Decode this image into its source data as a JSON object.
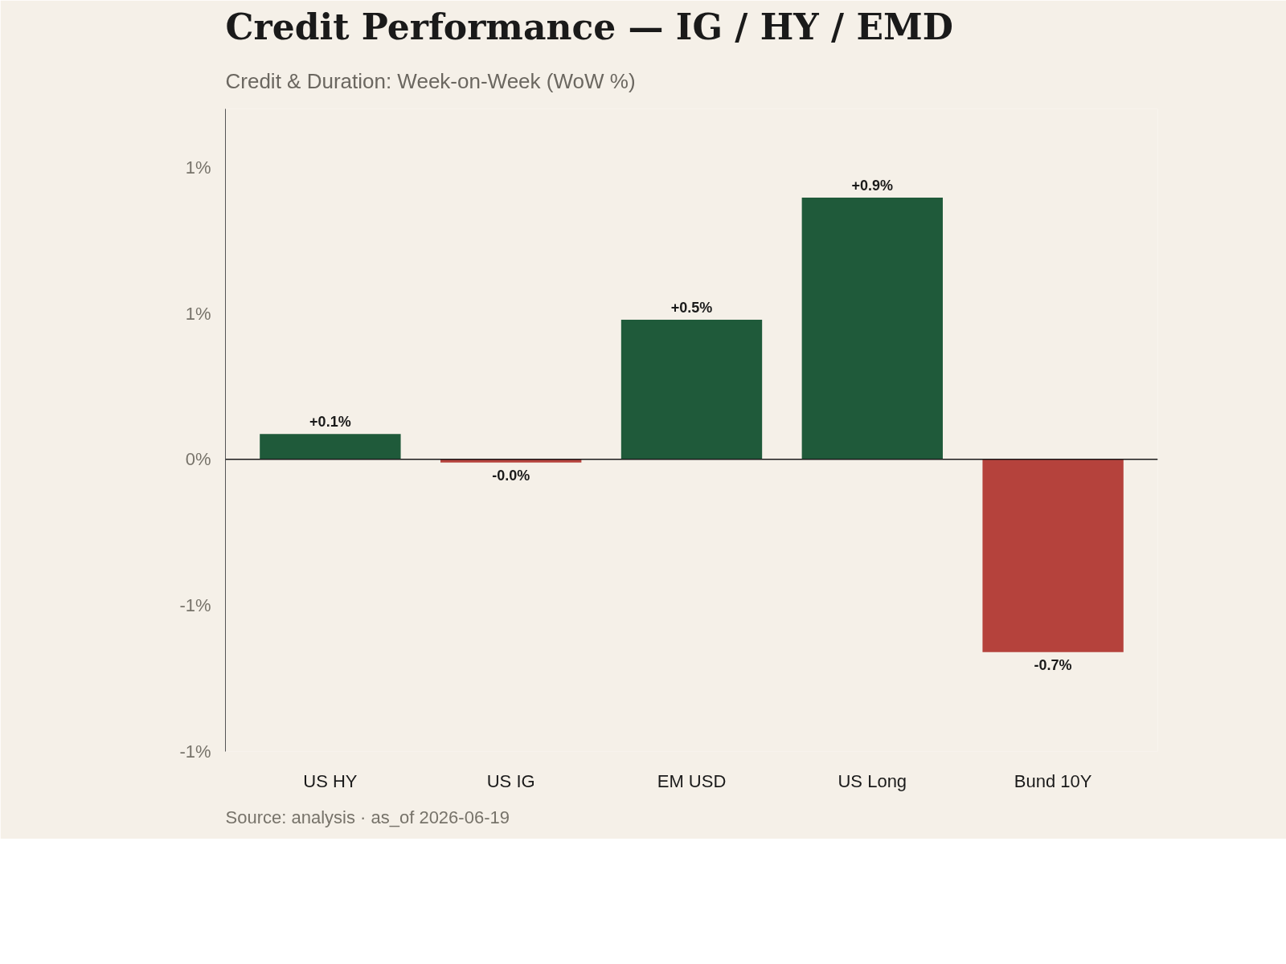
{
  "chart_data": {
    "type": "bar",
    "title": "Credit Performance — IG / HY / EMD",
    "subtitle": "Credit & Duration: Week-on-Week (WoW %)",
    "annotations": [
      "Source: analysis · as_of 2026-06-19"
    ],
    "categories": [
      "US HY",
      "US IG",
      "EM USD",
      "US Long",
      "Bund 10Y"
    ],
    "values": [
      0.087,
      -0.011,
      0.478,
      0.896,
      -0.66
    ],
    "colors": [
      "#1f5a3a",
      "#b5423c",
      "#1f5a3a",
      "#1f5a3a",
      "#b5423c"
    ],
    "value_labels": [
      "+0.1%",
      "-0.0%",
      "+0.5%",
      "+0.9%",
      "-0.7%"
    ],
    "ylim": [
      -1.0,
      1.2
    ],
    "yticks": [
      {
        "value": -1.0,
        "label": "-1%"
      },
      {
        "value": -0.5,
        "label": "-1%"
      },
      {
        "value": 0,
        "label": "0%"
      },
      {
        "value": 0.5,
        "label": "1%"
      },
      {
        "value": 1.0,
        "label": "1%"
      }
    ],
    "ref_lines": [
      {
        "axis": "y",
        "value": 0,
        "color": "#1a1a1a"
      }
    ],
    "grid": false
  }
}
